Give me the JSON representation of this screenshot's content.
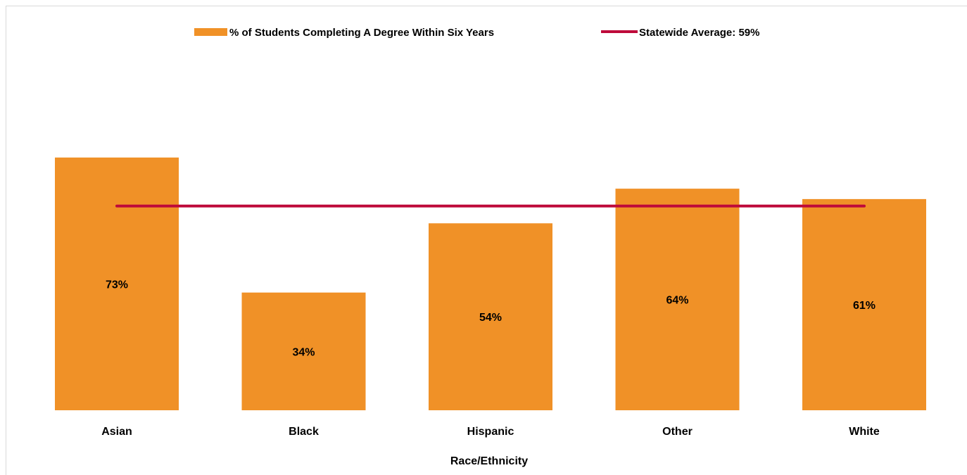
{
  "chart_data": {
    "type": "bar",
    "categories": [
      "Asian",
      "Black",
      "Hispanic",
      "Other",
      "White"
    ],
    "series": [
      {
        "name": "% of Students Completing A Degree Within Six Years",
        "values": [
          73,
          34,
          54,
          64,
          61
        ],
        "labels": [
          "73%",
          "34%",
          "54%",
          "64%",
          "61%"
        ],
        "color": "#F09127"
      }
    ],
    "reference_line": {
      "name": "Statewide Average: 59%",
      "value": 59,
      "color": "#BE0A3A"
    },
    "xlabel": "Race/Ethnicity",
    "ylabel": "",
    "ylim": [
      0,
      100
    ],
    "grid": false,
    "legend_position": "top"
  }
}
